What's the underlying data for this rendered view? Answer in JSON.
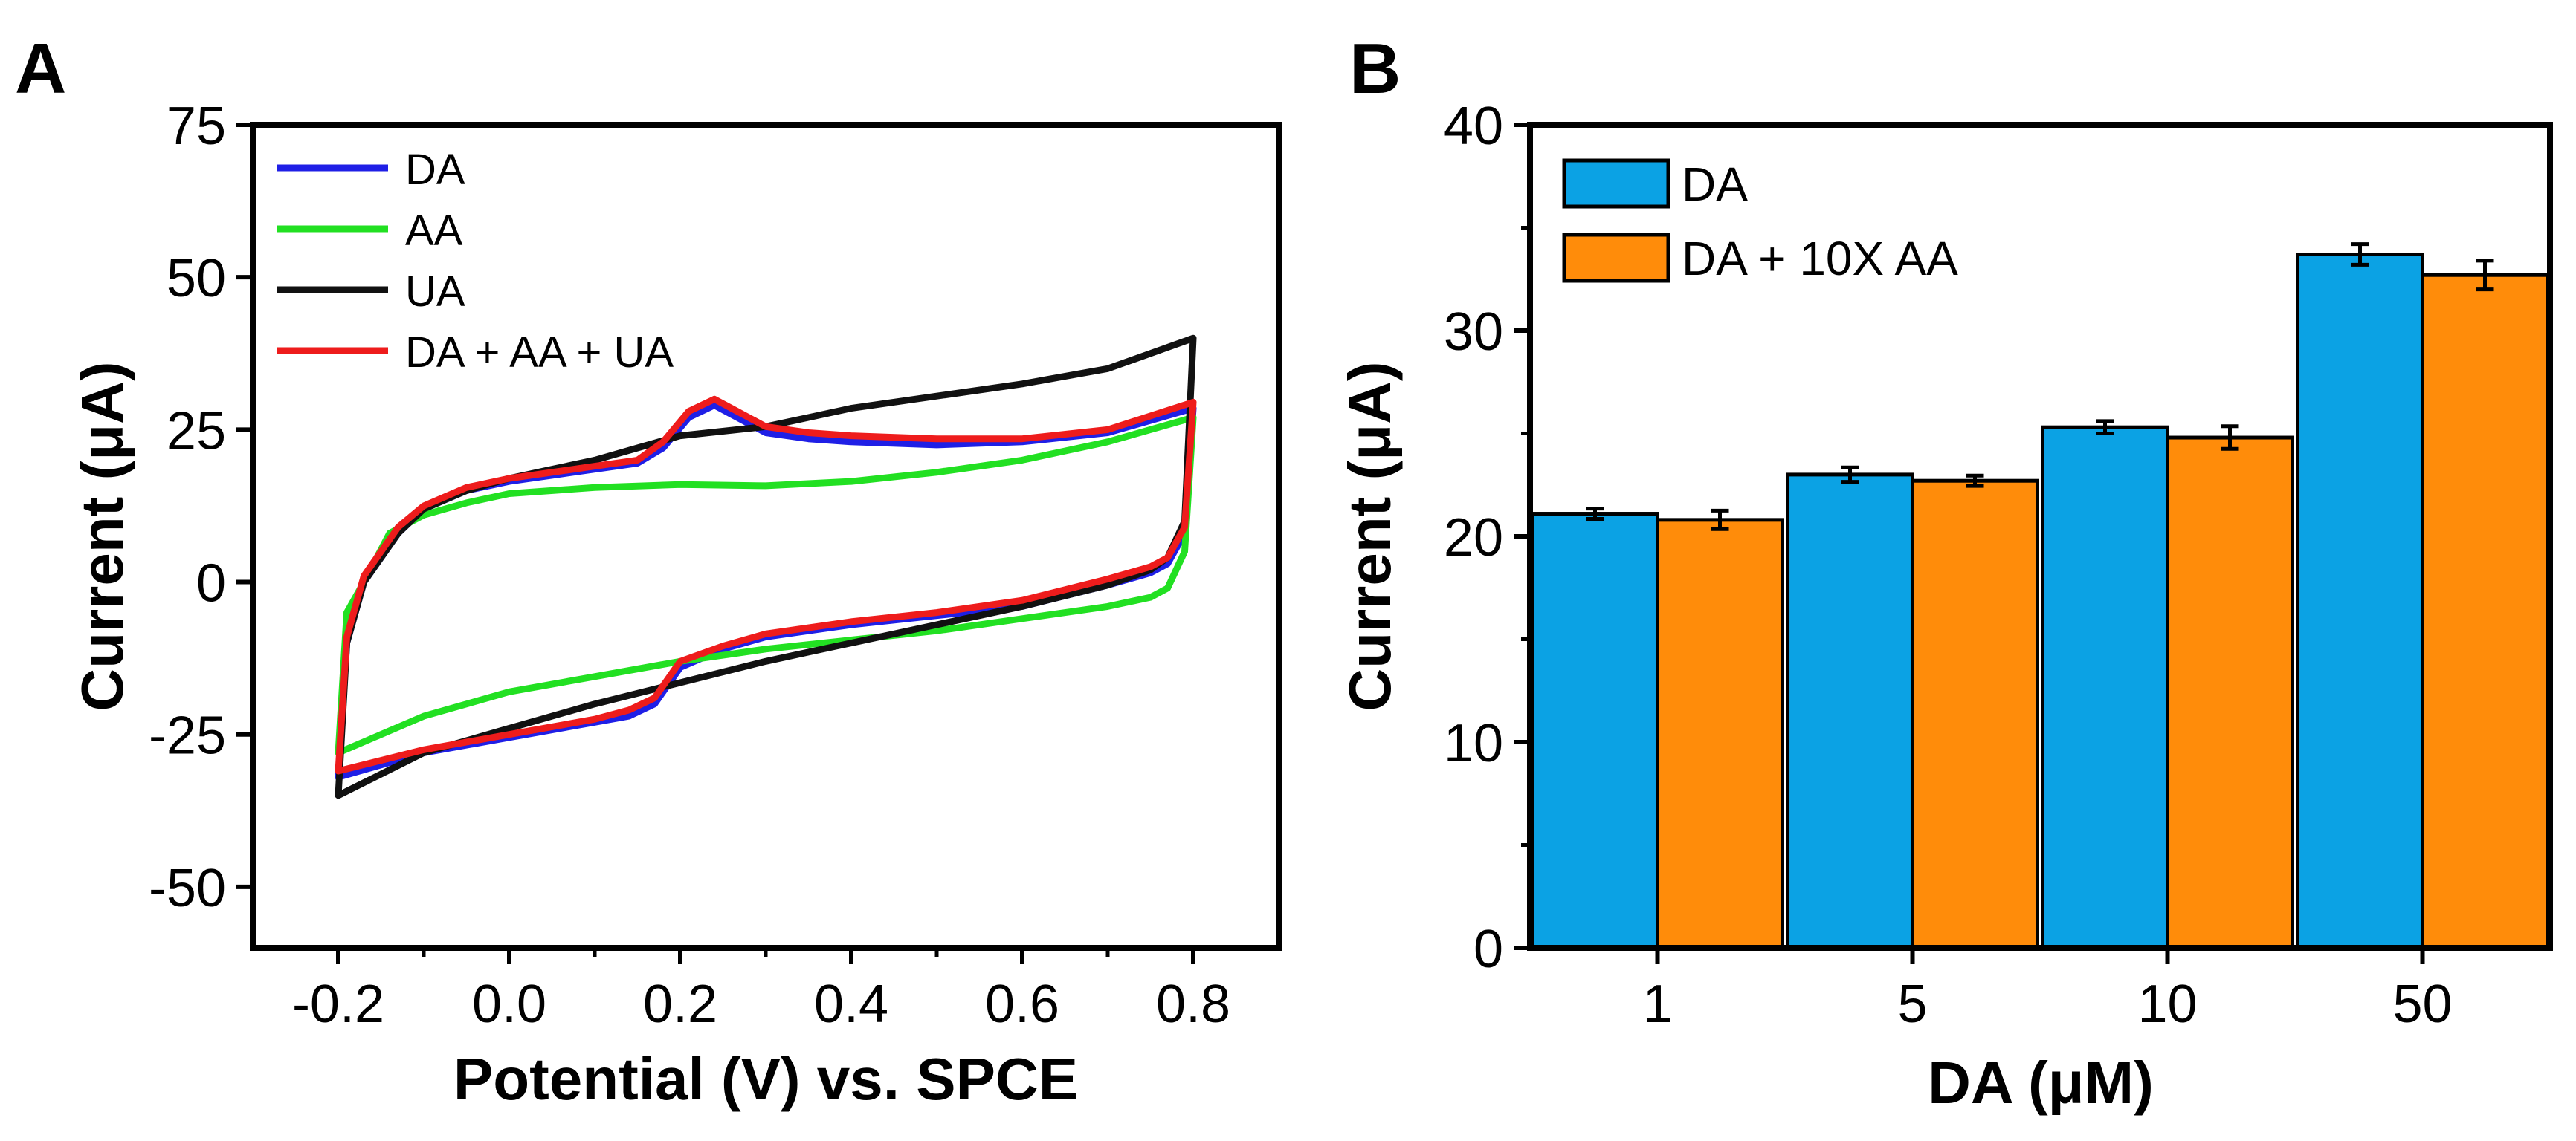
{
  "panels": {
    "a_label": "A",
    "b_label": "B"
  },
  "chart_data": [
    {
      "type": "line",
      "title": "",
      "xlabel": "Potential (V) vs. SPCE",
      "ylabel": "Current (μA)",
      "xlim": [
        -0.3,
        0.9
      ],
      "ylim": [
        -60,
        75
      ],
      "xticks": [
        -0.2,
        0.0,
        0.2,
        0.4,
        0.6,
        0.8
      ],
      "xtick_labels": [
        "-0.2",
        "0.0",
        "0.2",
        "0.4",
        "0.6",
        "0.8"
      ],
      "yticks": [
        75,
        50,
        25,
        0,
        -25,
        -50
      ],
      "ytick_labels": [
        "75",
        "50",
        "25",
        "0",
        "-25",
        "-50"
      ],
      "legend_position": "top-left",
      "series": [
        {
          "name": "DA",
          "color": "#1f1fe6",
          "forward": [
            [
              -0.2,
              -32
            ],
            [
              -0.19,
              -10
            ],
            [
              -0.17,
              0
            ],
            [
              -0.13,
              8
            ],
            [
              -0.1,
              12
            ],
            [
              -0.05,
              15
            ],
            [
              0.0,
              16.5
            ],
            [
              0.05,
              17.5
            ],
            [
              0.1,
              18.5
            ],
            [
              0.15,
              19.5
            ],
            [
              0.18,
              22
            ],
            [
              0.21,
              27
            ],
            [
              0.24,
              29
            ],
            [
              0.26,
              27.5
            ],
            [
              0.3,
              24.5
            ],
            [
              0.35,
              23.5
            ],
            [
              0.4,
              23
            ],
            [
              0.5,
              22.5
            ],
            [
              0.6,
              23
            ],
            [
              0.7,
              24.5
            ],
            [
              0.8,
              28.5
            ]
          ],
          "reverse": [
            [
              0.8,
              28.5
            ],
            [
              0.79,
              8
            ],
            [
              0.77,
              3
            ],
            [
              0.75,
              1.5
            ],
            [
              0.7,
              -0.5
            ],
            [
              0.6,
              -4
            ],
            [
              0.5,
              -5.5
            ],
            [
              0.4,
              -7
            ],
            [
              0.35,
              -8
            ],
            [
              0.3,
              -9
            ],
            [
              0.25,
              -11
            ],
            [
              0.2,
              -14
            ],
            [
              0.17,
              -20
            ],
            [
              0.14,
              -22
            ],
            [
              0.1,
              -23
            ],
            [
              0.0,
              -25.5
            ],
            [
              -0.1,
              -28
            ],
            [
              -0.2,
              -32
            ]
          ]
        },
        {
          "name": "AA",
          "color": "#22e022",
          "forward": [
            [
              -0.2,
              -28
            ],
            [
              -0.19,
              -5
            ],
            [
              -0.17,
              0
            ],
            [
              -0.14,
              8
            ],
            [
              -0.1,
              11
            ],
            [
              -0.05,
              13
            ],
            [
              0.0,
              14.5
            ],
            [
              0.1,
              15.5
            ],
            [
              0.2,
              16
            ],
            [
              0.3,
              15.8
            ],
            [
              0.4,
              16.5
            ],
            [
              0.5,
              18
            ],
            [
              0.6,
              20
            ],
            [
              0.7,
              23
            ],
            [
              0.8,
              27
            ]
          ],
          "reverse": [
            [
              0.8,
              27
            ],
            [
              0.79,
              5
            ],
            [
              0.77,
              -1
            ],
            [
              0.75,
              -2.5
            ],
            [
              0.7,
              -4
            ],
            [
              0.6,
              -6
            ],
            [
              0.5,
              -8
            ],
            [
              0.4,
              -9.5
            ],
            [
              0.3,
              -11
            ],
            [
              0.2,
              -13
            ],
            [
              0.1,
              -15.5
            ],
            [
              0.0,
              -18
            ],
            [
              -0.1,
              -22
            ],
            [
              -0.2,
              -28
            ]
          ]
        },
        {
          "name": "UA",
          "color": "#111111",
          "forward": [
            [
              -0.2,
              -35
            ],
            [
              -0.19,
              -10
            ],
            [
              -0.17,
              0
            ],
            [
              -0.13,
              8
            ],
            [
              -0.1,
              12
            ],
            [
              -0.05,
              15
            ],
            [
              0.0,
              17
            ],
            [
              0.05,
              18.5
            ],
            [
              0.1,
              20
            ],
            [
              0.15,
              22
            ],
            [
              0.2,
              24
            ],
            [
              0.3,
              25.5
            ],
            [
              0.35,
              27
            ],
            [
              0.4,
              28.5
            ],
            [
              0.5,
              30.5
            ],
            [
              0.6,
              32.5
            ],
            [
              0.7,
              35
            ],
            [
              0.8,
              40
            ]
          ],
          "reverse": [
            [
              0.8,
              40
            ],
            [
              0.79,
              10
            ],
            [
              0.77,
              4
            ],
            [
              0.75,
              2
            ],
            [
              0.7,
              -0.5
            ],
            [
              0.6,
              -4
            ],
            [
              0.5,
              -7
            ],
            [
              0.4,
              -10
            ],
            [
              0.35,
              -11.5
            ],
            [
              0.3,
              -13
            ],
            [
              0.2,
              -16.5
            ],
            [
              0.1,
              -20
            ],
            [
              0.0,
              -24
            ],
            [
              -0.1,
              -28
            ],
            [
              -0.2,
              -35
            ]
          ]
        },
        {
          "name": "DA + AA + UA",
          "color": "#ee1c1c",
          "forward": [
            [
              -0.2,
              -31
            ],
            [
              -0.19,
              -9
            ],
            [
              -0.17,
              1
            ],
            [
              -0.13,
              9
            ],
            [
              -0.1,
              12.5
            ],
            [
              -0.05,
              15.5
            ],
            [
              0.0,
              17
            ],
            [
              0.05,
              18
            ],
            [
              0.1,
              19
            ],
            [
              0.15,
              20
            ],
            [
              0.18,
              23
            ],
            [
              0.21,
              28
            ],
            [
              0.24,
              30
            ],
            [
              0.26,
              28.5
            ],
            [
              0.3,
              25.5
            ],
            [
              0.35,
              24.5
            ],
            [
              0.4,
              24
            ],
            [
              0.5,
              23.5
            ],
            [
              0.6,
              23.5
            ],
            [
              0.7,
              25
            ],
            [
              0.8,
              29.5
            ]
          ],
          "reverse": [
            [
              0.8,
              29.5
            ],
            [
              0.79,
              9
            ],
            [
              0.77,
              4
            ],
            [
              0.75,
              2.5
            ],
            [
              0.7,
              0.5
            ],
            [
              0.6,
              -3
            ],
            [
              0.5,
              -5
            ],
            [
              0.4,
              -6.5
            ],
            [
              0.35,
              -7.5
            ],
            [
              0.3,
              -8.5
            ],
            [
              0.25,
              -10.5
            ],
            [
              0.2,
              -13
            ],
            [
              0.17,
              -19
            ],
            [
              0.14,
              -21
            ],
            [
              0.1,
              -22.5
            ],
            [
              0.0,
              -25
            ],
            [
              -0.1,
              -27.5
            ],
            [
              -0.2,
              -31
            ]
          ]
        }
      ]
    },
    {
      "type": "bar",
      "title": "",
      "xlabel": "DA (μM)",
      "ylabel": "Current (μA)",
      "ylim": [
        0,
        40
      ],
      "yticks": [
        0,
        10,
        20,
        30,
        40
      ],
      "ytick_labels": [
        "0",
        "10",
        "20",
        "30",
        "40"
      ],
      "categories": [
        "1",
        "5",
        "10",
        "50"
      ],
      "legend_position": "top-left",
      "series": [
        {
          "name": "DA",
          "color": "#0ba2e4",
          "values": [
            21.1,
            23.0,
            25.3,
            33.7
          ],
          "errors": [
            0.25,
            0.35,
            0.3,
            0.5
          ]
        },
        {
          "name": "DA + 10X AA",
          "color": "#ff8c0a",
          "values": [
            20.8,
            22.7,
            24.8,
            32.7
          ],
          "errors": [
            0.45,
            0.25,
            0.55,
            0.7
          ]
        }
      ]
    }
  ]
}
